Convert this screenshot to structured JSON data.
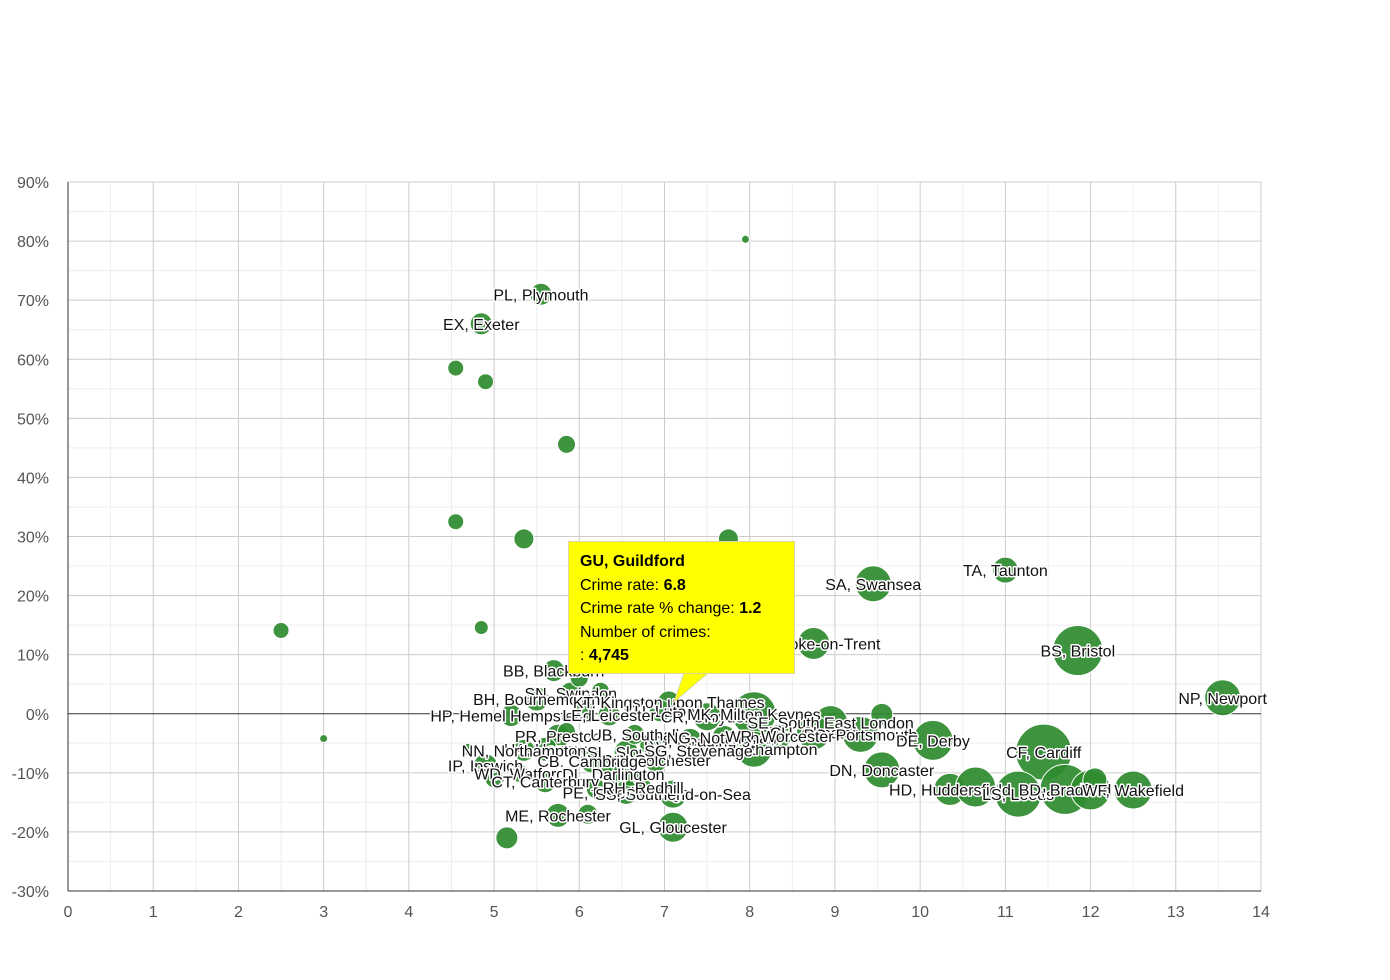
{
  "chart_data": {
    "type": "scatter",
    "title": "",
    "xlabel": "",
    "ylabel": "",
    "xlim": [
      0,
      14
    ],
    "ylim": [
      -30,
      90
    ],
    "x_ticks": [
      "0",
      "1",
      "2",
      "3",
      "4",
      "5",
      "6",
      "7",
      "8",
      "9",
      "10",
      "11",
      "12",
      "13",
      "14"
    ],
    "y_ticks": [
      "-30%",
      "-20%",
      "-10%",
      "0%",
      "10%",
      "20%",
      "30%",
      "40%",
      "50%",
      "60%",
      "70%",
      "80%",
      "90%"
    ],
    "bubble_color": "#2e8b2e",
    "points": [
      {
        "x": 7.95,
        "y": 80.3,
        "r": 4,
        "label": ""
      },
      {
        "x": 5.55,
        "y": 71.0,
        "r": 11,
        "label": "PL, Plymouth"
      },
      {
        "x": 4.85,
        "y": 66.0,
        "r": 11,
        "label": "EX, Exeter"
      },
      {
        "x": 4.55,
        "y": 58.5,
        "r": 8,
        "label": ""
      },
      {
        "x": 4.9,
        "y": 56.2,
        "r": 8,
        "label": ""
      },
      {
        "x": 5.85,
        "y": 45.6,
        "r": 9,
        "label": ""
      },
      {
        "x": 4.55,
        "y": 32.5,
        "r": 8,
        "label": ""
      },
      {
        "x": 5.35,
        "y": 29.6,
        "r": 10,
        "label": ""
      },
      {
        "x": 7.75,
        "y": 29.6,
        "r": 10,
        "label": ""
      },
      {
        "x": 2.5,
        "y": 14.1,
        "r": 8,
        "label": ""
      },
      {
        "x": 4.85,
        "y": 14.6,
        "r": 7,
        "label": ""
      },
      {
        "x": 3.0,
        "y": -4.2,
        "r": 4,
        "label": ""
      },
      {
        "x": 4.7,
        "y": -6.0,
        "r": 6,
        "label": ""
      },
      {
        "x": 5.15,
        "y": -21.0,
        "r": 11,
        "label": ""
      },
      {
        "x": 9.45,
        "y": 22.0,
        "r": 18,
        "label": "SA, Swansea"
      },
      {
        "x": 11.0,
        "y": 24.3,
        "r": 13,
        "label": "TA, Taunton"
      },
      {
        "x": 8.75,
        "y": 11.9,
        "r": 16,
        "label": "ST, Stoke-on-Trent"
      },
      {
        "x": 11.85,
        "y": 10.7,
        "r": 25,
        "label": "BS, Bristol"
      },
      {
        "x": 13.55,
        "y": 2.7,
        "r": 18,
        "label": "NP, Newport"
      },
      {
        "x": 5.7,
        "y": 7.3,
        "r": 11,
        "label": "BB, Blackburn"
      },
      {
        "x": 5.9,
        "y": 3.5,
        "r": 11,
        "label": "SN, Swindon"
      },
      {
        "x": 5.5,
        "y": 2.5,
        "r": 12,
        "label": "BH, Bournemouth"
      },
      {
        "x": 5.2,
        "y": -0.3,
        "r": 11,
        "label": "HP, Hemel Hempstead"
      },
      {
        "x": 7.05,
        "y": 2.0,
        "r": 11,
        "label": "KT, Kingston upon Thames"
      },
      {
        "x": 6.95,
        "y": 0.5,
        "r": 11,
        "label": "LU, Luton"
      },
      {
        "x": 7.5,
        "y": -0.5,
        "r": 14,
        "label": "CR, Croydon"
      },
      {
        "x": 8.05,
        "y": 0.0,
        "r": 22,
        "label": "MK, Milton Keynes"
      },
      {
        "x": 8.95,
        "y": -1.5,
        "r": 17,
        "label": "SE, South East London"
      },
      {
        "x": 8.75,
        "y": -3.2,
        "r": 17,
        "label": "CH, Chester"
      },
      {
        "x": 9.55,
        "y": -0.1,
        "r": 11,
        "label": ""
      },
      {
        "x": 9.3,
        "y": -3.5,
        "r": 18,
        "label": "PO, Portsmouth"
      },
      {
        "x": 10.15,
        "y": -4.5,
        "r": 20,
        "label": "DE, Derby"
      },
      {
        "x": 11.45,
        "y": -6.5,
        "r": 28,
        "label": "CF, Cardiff"
      },
      {
        "x": 8.05,
        "y": -6.0,
        "r": 18,
        "label": "SO, Southampton"
      },
      {
        "x": 9.55,
        "y": -9.5,
        "r": 18,
        "label": "DN, Doncaster"
      },
      {
        "x": 10.35,
        "y": -12.8,
        "r": 16,
        "label": "HD, Huddersfield"
      },
      {
        "x": 10.65,
        "y": -12.4,
        "r": 20,
        "label": ""
      },
      {
        "x": 11.15,
        "y": -13.6,
        "r": 23,
        "label": "LS, Leeds"
      },
      {
        "x": 11.7,
        "y": -12.8,
        "r": 25,
        "label": "BD, Bradford"
      },
      {
        "x": 12.0,
        "y": -12.9,
        "r": 20,
        "label": ""
      },
      {
        "x": 12.05,
        "y": -11.2,
        "r": 12,
        "label": ""
      },
      {
        "x": 12.5,
        "y": -12.9,
        "r": 19,
        "label": "WF, Wakefield"
      },
      {
        "x": 5.75,
        "y": -3.8,
        "r": 12,
        "label": "PR, Preston"
      },
      {
        "x": 5.6,
        "y": -6.0,
        "r": 12,
        "label": "HA, Harrow"
      },
      {
        "x": 5.35,
        "y": -6.2,
        "r": 11,
        "label": "NN, Northampton"
      },
      {
        "x": 6.55,
        "y": -6.5,
        "r": 12,
        "label": "SL, Slough"
      },
      {
        "x": 6.9,
        "y": -7.8,
        "r": 12,
        "label": "CO, Colchester"
      },
      {
        "x": 6.15,
        "y": -8.0,
        "r": 12,
        "label": "CB, Cambridge"
      },
      {
        "x": 4.9,
        "y": -8.8,
        "r": 12,
        "label": "IP, Ipswich"
      },
      {
        "x": 5.3,
        "y": -10.1,
        "r": 9,
        "label": "WD, Watford"
      },
      {
        "x": 6.4,
        "y": -10.2,
        "r": 12,
        "label": "DL, Darlington"
      },
      {
        "x": 5.6,
        "y": -11.5,
        "r": 11,
        "label": "CT, Canterbury"
      },
      {
        "x": 6.55,
        "y": -13.3,
        "r": 12,
        "label": "PE, Peterborough"
      },
      {
        "x": 7.1,
        "y": -13.6,
        "r": 14,
        "label": "SS, Southend-on-Sea"
      },
      {
        "x": 5.75,
        "y": -17.2,
        "r": 12,
        "label": "ME, Rochester"
      },
      {
        "x": 6.1,
        "y": -17.0,
        "r": 10,
        "label": ""
      },
      {
        "x": 7.1,
        "y": -19.2,
        "r": 15,
        "label": "GL, Gloucester"
      },
      {
        "x": 6.2,
        "y": -12.7,
        "r": 10,
        "label": ""
      },
      {
        "x": 6.75,
        "y": -12.5,
        "r": 9,
        "label": "RH, Redhill"
      },
      {
        "x": 6.85,
        "y": -5.2,
        "r": 12,
        "label": ""
      },
      {
        "x": 7.3,
        "y": -4.5,
        "r": 12,
        "label": "RG, Reading"
      },
      {
        "x": 6.35,
        "y": -0.2,
        "r": 11,
        "label": "LE, Leicester"
      },
      {
        "x": 6.05,
        "y": 0.5,
        "r": 11,
        "label": ""
      },
      {
        "x": 6.25,
        "y": 3.8,
        "r": 9,
        "label": ""
      },
      {
        "x": 6.0,
        "y": 6.0,
        "r": 9,
        "label": ""
      },
      {
        "x": 6.65,
        "y": -3.5,
        "r": 10,
        "label": "UB, Southall"
      },
      {
        "x": 7.7,
        "y": -4.0,
        "r": 12,
        "label": "NG, Nottingham"
      },
      {
        "x": 5.85,
        "y": -3.0,
        "r": 9,
        "label": ""
      },
      {
        "x": 6.3,
        "y": -8.5,
        "r": 10,
        "label": ""
      },
      {
        "x": 7.4,
        "y": -6.2,
        "r": 11,
        "label": "SG, Stevenage"
      },
      {
        "x": 8.35,
        "y": -3.8,
        "r": 12,
        "label": "WR, Worcester"
      },
      {
        "x": 5.0,
        "y": -11.0,
        "r": 9,
        "label": ""
      },
      {
        "x": 6.6,
        "y": -10.6,
        "r": 10,
        "label": ""
      }
    ],
    "tooltip": {
      "title": "GU, Guildford",
      "line1_label": "Crime rate: ",
      "line1_value": "6.8",
      "line2_label": "Crime rate % change: ",
      "line2_value": "1.2",
      "line3_label": "Number of crimes:",
      "line4_label": ": ",
      "line4_value": "4,745"
    }
  }
}
